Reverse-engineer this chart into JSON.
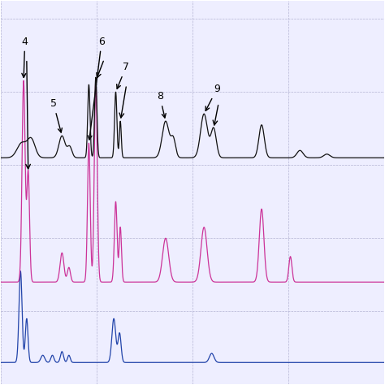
{
  "background_color": "#ffffff",
  "grid_color": "#aaaacc",
  "plot_area_color": "#eeeeff",
  "black_line_color": "#111111",
  "pink_line_color": "#cc3399",
  "blue_line_color": "#2244aa",
  "black_baseline": 0.62,
  "pink_baseline": 0.28,
  "blue_baseline": 0.06,
  "ylim": [
    0.0,
    1.05
  ],
  "xlim": [
    0,
    10
  ]
}
